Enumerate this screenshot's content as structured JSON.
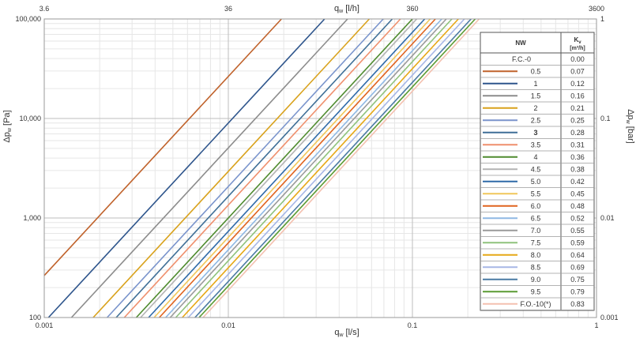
{
  "chart_data": {
    "type": "line",
    "x_scale": "log",
    "y_scale": "log",
    "xlabel": "q_w [l/s]",
    "xlabel_main": "q",
    "xlabel_sub": "w",
    "xlabel_unit": " [l/s]",
    "x2label_main": "q",
    "x2label_sub": "w",
    "x2label_unit": " [l/h]",
    "ylabel_main": "Δp",
    "ylabel_sub": "w",
    "ylabel_unit": " [Pa]",
    "y2label_main": "Δp",
    "y2label_sub": "w",
    "y2label_unit": " [bar]",
    "xlim": [
      0.001,
      1
    ],
    "ylim": [
      100,
      100000
    ],
    "x_ticks": [
      {
        "value": 0.001,
        "label": "0.001"
      },
      {
        "value": 0.01,
        "label": "0.01"
      },
      {
        "value": 0.1,
        "label": "0.1"
      },
      {
        "value": 1,
        "label": "1"
      }
    ],
    "x2_ticks": [
      {
        "value": 0.001,
        "label": "3.6"
      },
      {
        "value": 0.01,
        "label": "36"
      },
      {
        "value": 0.1,
        "label": "360"
      },
      {
        "value": 1,
        "label": "3600"
      }
    ],
    "y_ticks": [
      {
        "value": 100,
        "label": "100"
      },
      {
        "value": 1000,
        "label": "1,000"
      },
      {
        "value": 10000,
        "label": "10,000"
      },
      {
        "value": 100000,
        "label": "100,000"
      }
    ],
    "y2_ticks": [
      {
        "value": 100,
        "label": "0.001"
      },
      {
        "value": 1000,
        "label": "0.01"
      },
      {
        "value": 10000,
        "label": "0.1"
      },
      {
        "value": 100000,
        "label": "1"
      }
    ],
    "grid": true,
    "legend_position": "right",
    "legend_header": {
      "nw": "NW",
      "kv_main": "K",
      "kv_sub": "v",
      "kv_unit": "[m³/h]"
    },
    "series": [
      {
        "name": "F.C.-0",
        "kv": 0.0,
        "kv_label": "0.00",
        "color": null,
        "bold": false
      },
      {
        "name": "0.5",
        "kv": 0.07,
        "kv_label": "0.07",
        "color": "#c0622b",
        "bold": false
      },
      {
        "name": "1",
        "kv": 0.12,
        "kv_label": "0.12",
        "color": "#2e558c",
        "bold": false
      },
      {
        "name": "1.5",
        "kv": 0.16,
        "kv_label": "0.16",
        "color": "#8c8c8c",
        "bold": false
      },
      {
        "name": "2",
        "kv": 0.21,
        "kv_label": "0.21",
        "color": "#d9a21c",
        "bold": false
      },
      {
        "name": "2.5",
        "kv": 0.25,
        "kv_label": "0.25",
        "color": "#7a94cc",
        "bold": false
      },
      {
        "name": "3",
        "kv": 0.28,
        "kv_label": "0.28",
        "color": "#3f6f97",
        "bold": true
      },
      {
        "name": "3.5",
        "kv": 0.31,
        "kv_label": "0.31",
        "color": "#ef8f6d",
        "bold": false
      },
      {
        "name": "4",
        "kv": 0.36,
        "kv_label": "0.36",
        "color": "#4f8b2f",
        "bold": false
      },
      {
        "name": "4.5",
        "kv": 0.38,
        "kv_label": "0.38",
        "color": "#b3b3b3",
        "bold": false
      },
      {
        "name": "5.0",
        "kv": 0.42,
        "kv_label": "0.42",
        "color": "#2f6aa8",
        "bold": false
      },
      {
        "name": "5.5",
        "kv": 0.45,
        "kv_label": "0.45",
        "color": "#f1c75a",
        "bold": false
      },
      {
        "name": "6.0",
        "kv": 0.48,
        "kv_label": "0.48",
        "color": "#e0631f",
        "bold": false
      },
      {
        "name": "6.5",
        "kv": 0.52,
        "kv_label": "0.52",
        "color": "#8fb8e4",
        "bold": false
      },
      {
        "name": "7.0",
        "kv": 0.55,
        "kv_label": "0.55",
        "color": "#9a9a9a",
        "bold": false
      },
      {
        "name": "7.5",
        "kv": 0.59,
        "kv_label": "0.59",
        "color": "#8fc27c",
        "bold": false
      },
      {
        "name": "8.0",
        "kv": 0.64,
        "kv_label": "0.64",
        "color": "#e6a817",
        "bold": false
      },
      {
        "name": "8.5",
        "kv": 0.69,
        "kv_label": "0.69",
        "color": "#a7b7e6",
        "bold": false
      },
      {
        "name": "9.0",
        "kv": 0.75,
        "kv_label": "0.75",
        "color": "#4a7aa3",
        "bold": false
      },
      {
        "name": "9.5",
        "kv": 0.79,
        "kv_label": "0.79",
        "color": "#5a9a32",
        "bold": false
      },
      {
        "name": "F.O.-10(*)",
        "kv": 0.83,
        "kv_label": "0.83",
        "color": "#f4c1b0",
        "bold": false
      }
    ]
  }
}
